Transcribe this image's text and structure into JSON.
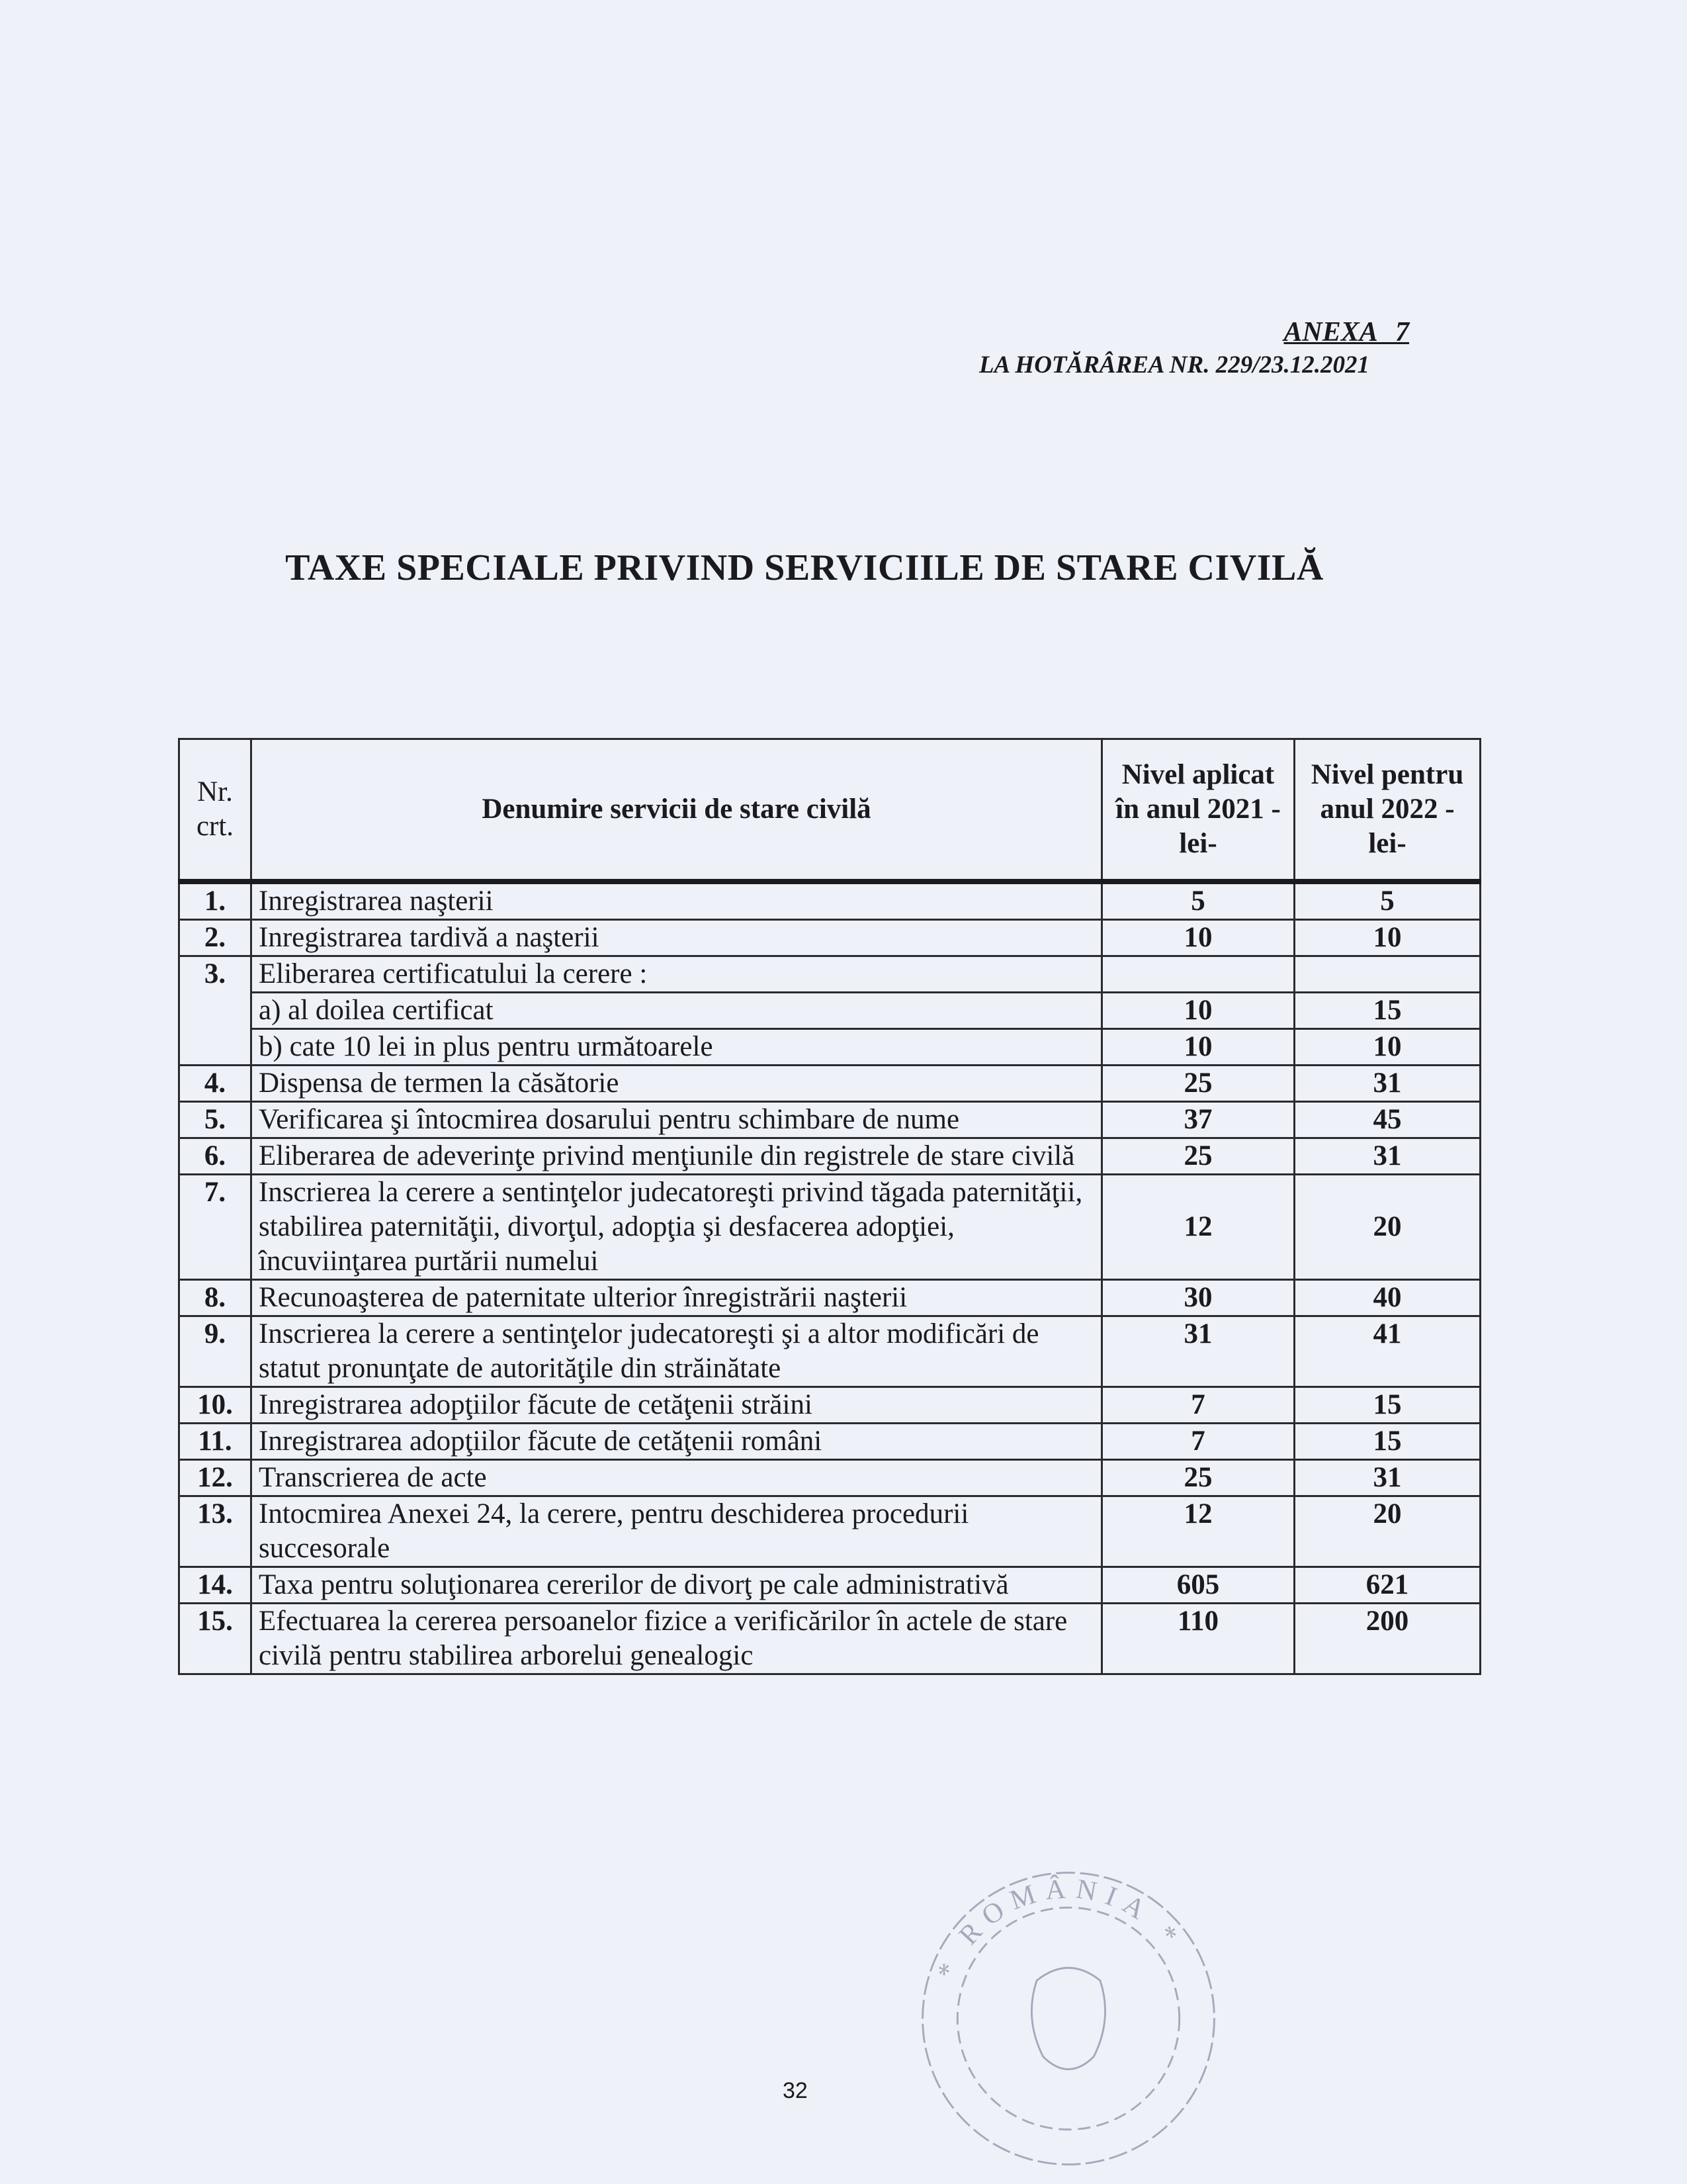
{
  "header": {
    "annex": "ANEXA   7",
    "decision": "LA HOTĂRÂREA NR. 229/23.12.2021"
  },
  "title": "TAXE SPECIALE PRIVIND SERVICIILE DE STARE CIVILĂ",
  "table": {
    "columns": {
      "nr": "Nr. crt.",
      "name": "Denumire servicii de stare civilă",
      "v2021": "Nivel aplicat în anul 2021 -lei-",
      "v2022": "Nivel pentru anul 2022 -lei-"
    },
    "rows": [
      {
        "nr": "1.",
        "name": "Inregistrarea naşterii",
        "v2021": "5",
        "v2022": "5"
      },
      {
        "nr": "2.",
        "name": "Inregistrarea tardivă a naşterii",
        "v2021": "10",
        "v2022": "10"
      },
      {
        "nr": "3.",
        "name": "Eliberarea certificatului la cerere :",
        "v2021": "",
        "v2022": "",
        "sub": [
          {
            "name": "a) al doilea certificat",
            "v2021": "10",
            "v2022": "15"
          },
          {
            "name": "b) cate 10 lei in plus pentru următoarele",
            "v2021": "10",
            "v2022": "10"
          }
        ]
      },
      {
        "nr": "4.",
        "name": "Dispensa de termen la căsătorie",
        "v2021": "25",
        "v2022": "31"
      },
      {
        "nr": "5.",
        "name": "Verificarea şi întocmirea dosarului pentru schimbare de  nume",
        "v2021": "37",
        "v2022": "45"
      },
      {
        "nr": "6.",
        "name": "Eliberarea de adeverinţe privind menţiunile din registrele de stare civilă",
        "v2021": "25",
        "v2022": "31"
      },
      {
        "nr": "7.",
        "name": "Inscrierea la cerere a sentinţelor judecatoreşti privind tăgada paternităţii, stabilirea paternităţii, divorţul, adopţia şi desfacerea adopţiei, încuviinţarea purtării numelui",
        "v2021": "12",
        "v2022": "20",
        "valign": "middle"
      },
      {
        "nr": "8.",
        "name": "Recunoaşterea de paternitate ulterior înregistrării naşterii",
        "v2021": "30",
        "v2022": "40"
      },
      {
        "nr": "9.",
        "name": "Inscrierea la cerere a sentinţelor judecatoreşti şi a altor modificări de statut pronunţate de autorităţile din străinătate",
        "v2021": "31",
        "v2022": "41"
      },
      {
        "nr": "10.",
        "name": "Inregistrarea adopţiilor făcute de cetăţenii străini",
        "v2021": "7",
        "v2022": "15"
      },
      {
        "nr": "11.",
        "name": "Inregistrarea adopţiilor făcute de cetăţenii români",
        "v2021": "7",
        "v2022": "15"
      },
      {
        "nr": "12.",
        "name": "Transcrierea de acte",
        "v2021": "25",
        "v2022": "31"
      },
      {
        "nr": "13.",
        "name": "Intocmirea Anexei 24, la cerere, pentru deschiderea procedurii succesorale",
        "v2021": "12",
        "v2022": "20"
      },
      {
        "nr": "14.",
        "name": "Taxa pentru soluţionarea cererilor de divorţ pe cale administrativă",
        "v2021": "605",
        "v2022": "621"
      },
      {
        "nr": "15.",
        "name": "Efectuarea la cererea persoanelor fizice a verificărilor în actele de stare civilă pentru stabilirea arborelui genealogic",
        "v2021": "110",
        "v2022": "200"
      }
    ]
  },
  "page_number": "32",
  "stamp": {
    "text": "* ROMÂNIA *",
    "color": "#6a6f88"
  }
}
